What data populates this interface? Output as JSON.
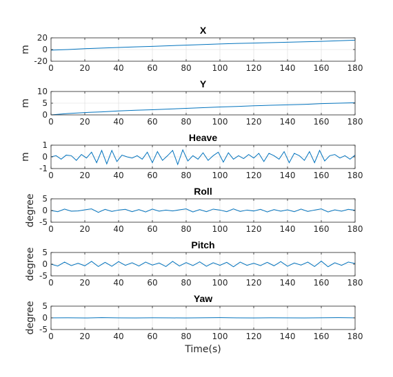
{
  "chart_data": [
    {
      "type": "line",
      "title": "X",
      "ylabel": "m",
      "xlim": [
        0,
        180
      ],
      "ylim": [
        -20,
        20
      ],
      "xticks": [
        0,
        20,
        40,
        60,
        80,
        100,
        120,
        140,
        160,
        180
      ],
      "yticks": [
        -20,
        0,
        20
      ],
      "grid": true,
      "series": [
        {
          "x": [
            0,
            10,
            20,
            30,
            40,
            50,
            60,
            70,
            80,
            90,
            100,
            110,
            120,
            130,
            140,
            150,
            160,
            170,
            180
          ],
          "y": [
            -1,
            0,
            1.5,
            2.5,
            3.5,
            4.5,
            5.5,
            6.5,
            7.5,
            8.5,
            9.5,
            10.5,
            11,
            11.8,
            12.5,
            13.3,
            14,
            15,
            16
          ]
        }
      ]
    },
    {
      "type": "line",
      "title": "Y",
      "ylabel": "m",
      "xlim": [
        0,
        180
      ],
      "ylim": [
        0,
        10
      ],
      "xticks": [
        0,
        20,
        40,
        60,
        80,
        100,
        120,
        140,
        160,
        180
      ],
      "yticks": [
        0,
        5,
        10
      ],
      "grid": true,
      "series": [
        {
          "x": [
            0,
            10,
            20,
            30,
            40,
            50,
            60,
            70,
            80,
            90,
            100,
            110,
            120,
            130,
            140,
            150,
            160,
            170,
            180
          ],
          "y": [
            0,
            0.6,
            1,
            1.3,
            1.7,
            2,
            2.2,
            2.5,
            2.8,
            3.1,
            3.4,
            3.6,
            3.9,
            4.1,
            4.3,
            4.5,
            4.8,
            5,
            5.2
          ]
        }
      ]
    },
    {
      "type": "line",
      "title": "Heave",
      "ylabel": "m",
      "xlim": [
        0,
        180
      ],
      "ylim": [
        -1,
        1
      ],
      "xticks": [
        0,
        20,
        40,
        60,
        80,
        100,
        120,
        140,
        160,
        180
      ],
      "yticks": [
        -1,
        0,
        1
      ],
      "grid": true,
      "series": [
        {
          "x": [
            0,
            3,
            6,
            9,
            12,
            15,
            18,
            21,
            24,
            27,
            30,
            33,
            36,
            39,
            42,
            45,
            48,
            51,
            54,
            57,
            60,
            63,
            66,
            69,
            72,
            75,
            78,
            81,
            84,
            87,
            90,
            93,
            96,
            99,
            102,
            105,
            108,
            111,
            114,
            117,
            120,
            123,
            126,
            129,
            132,
            135,
            138,
            141,
            144,
            147,
            150,
            153,
            156,
            159,
            162,
            165,
            168,
            171,
            174,
            177,
            180
          ],
          "y": [
            0,
            0.1,
            -0.2,
            0.15,
            0.1,
            -0.3,
            0.2,
            -0.1,
            0.4,
            -0.5,
            0.55,
            -0.6,
            0.55,
            -0.4,
            0.15,
            0,
            -0.1,
            0.1,
            -0.2,
            0.4,
            -0.5,
            0.45,
            -0.3,
            0.1,
            0.55,
            -0.65,
            0.6,
            -0.35,
            0.1,
            -0.2,
            0.35,
            -0.3,
            0.1,
            0.4,
            -0.45,
            0.35,
            -0.2,
            0.1,
            -0.15,
            0.2,
            -0.1,
            0.3,
            -0.4,
            0.3,
            0.1,
            -0.2,
            0.45,
            -0.5,
            0.3,
            0.1,
            -0.3,
            0.45,
            -0.5,
            0.55,
            -0.35,
            0.1,
            0.2,
            -0.1,
            0.1,
            -0.2,
            0.15
          ]
        }
      ]
    },
    {
      "type": "line",
      "title": "Roll",
      "ylabel": "degree",
      "xlim": [
        0,
        180
      ],
      "ylim": [
        -5,
        5
      ],
      "xticks": [
        0,
        20,
        40,
        60,
        80,
        100,
        120,
        140,
        160,
        180
      ],
      "yticks": [
        -5,
        0,
        5
      ],
      "grid": true,
      "series": [
        {
          "x": [
            0,
            4,
            8,
            12,
            16,
            20,
            24,
            28,
            32,
            36,
            40,
            44,
            48,
            52,
            56,
            60,
            64,
            68,
            72,
            76,
            80,
            84,
            88,
            92,
            96,
            100,
            104,
            108,
            112,
            116,
            120,
            124,
            128,
            132,
            136,
            140,
            144,
            148,
            152,
            156,
            160,
            164,
            168,
            172,
            176,
            180
          ],
          "y": [
            0,
            -0.5,
            0.6,
            -0.3,
            -0.2,
            0.3,
            0.7,
            -0.8,
            0.5,
            -0.4,
            0.2,
            0.5,
            -0.5,
            0.4,
            -0.6,
            0.6,
            -0.3,
            0.2,
            -0.2,
            0.3,
            0.7,
            -0.6,
            0.4,
            -0.5,
            0.6,
            0.2,
            -0.5,
            0.7,
            -0.4,
            0.2,
            -0.2,
            0.5,
            -0.6,
            0.4,
            -0.3,
            0.3,
            -0.5,
            0.6,
            -0.4,
            0.2,
            0.7,
            -0.6,
            0.3,
            -0.3,
            0.5,
            0.1
          ]
        }
      ]
    },
    {
      "type": "line",
      "title": "Pitch",
      "ylabel": "degree",
      "xlim": [
        0,
        180
      ],
      "ylim": [
        -5,
        5
      ],
      "xticks": [
        0,
        20,
        40,
        60,
        80,
        100,
        120,
        140,
        160,
        180
      ],
      "yticks": [
        -5,
        0,
        5
      ],
      "grid": true,
      "series": [
        {
          "x": [
            0,
            4,
            8,
            12,
            16,
            20,
            24,
            28,
            32,
            36,
            40,
            44,
            48,
            52,
            56,
            60,
            64,
            68,
            72,
            76,
            80,
            84,
            88,
            92,
            96,
            100,
            104,
            108,
            112,
            116,
            120,
            124,
            128,
            132,
            136,
            140,
            144,
            148,
            152,
            156,
            160,
            164,
            168,
            172,
            176,
            180
          ],
          "y": [
            0,
            -0.8,
            0.9,
            -0.6,
            0.4,
            -0.7,
            1.2,
            -1,
            0.8,
            -0.9,
            1.1,
            -0.5,
            0.6,
            -0.8,
            0.9,
            -0.4,
            0.5,
            -1,
            1.2,
            -0.8,
            0.7,
            -0.6,
            1,
            -0.9,
            0.6,
            -0.5,
            0.8,
            -1.1,
            0.9,
            -0.5,
            0.4,
            -0.6,
            0.8,
            -0.7,
            1.1,
            -0.9,
            0.5,
            -0.4,
            0.9,
            -1,
            1.3,
            -1.1,
            0.6,
            -0.5,
            0.9,
            0.3
          ]
        }
      ]
    },
    {
      "type": "line",
      "title": "Yaw",
      "ylabel": "degree",
      "xlabel": "Time(s)",
      "xlim": [
        0,
        180
      ],
      "ylim": [
        -5,
        5
      ],
      "xticks": [
        0,
        20,
        40,
        60,
        80,
        100,
        120,
        140,
        160,
        180
      ],
      "yticks": [
        -5,
        0,
        5
      ],
      "grid": true,
      "series": [
        {
          "x": [
            0,
            10,
            20,
            30,
            40,
            50,
            60,
            70,
            80,
            90,
            100,
            110,
            120,
            130,
            140,
            150,
            160,
            170,
            180
          ],
          "y": [
            0,
            0.05,
            -0.05,
            0.1,
            0,
            -0.05,
            0.05,
            0,
            -0.05,
            0.05,
            0.1,
            0,
            -0.05,
            0.05,
            0,
            -0.05,
            0.05,
            0.1,
            0
          ]
        }
      ]
    }
  ]
}
